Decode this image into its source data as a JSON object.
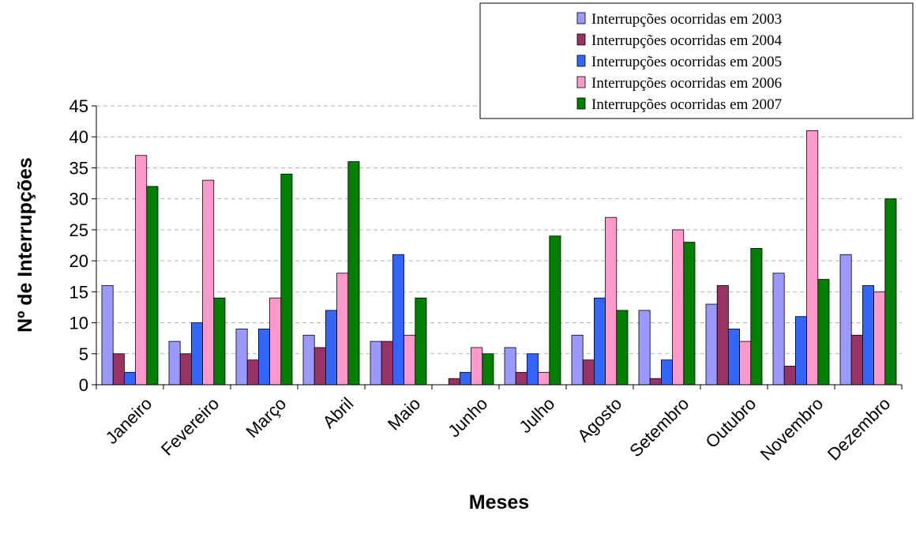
{
  "chart_data": {
    "type": "bar",
    "title": "",
    "xlabel": "Meses",
    "ylabel": "Nº de Interrupções",
    "ylim": [
      0,
      45
    ],
    "yticks": [
      0,
      5,
      10,
      15,
      20,
      25,
      30,
      35,
      40,
      45
    ],
    "grid": "horizontal dashed",
    "legend_position": "top-right",
    "categories": [
      "Janeiro",
      "Fevereiro",
      "Março",
      "Abril",
      "Maio",
      "Junho",
      "Julho",
      "Agosto",
      "Setembro",
      "Outubro",
      "Novembro",
      "Dezembro"
    ],
    "series": [
      {
        "name": "Interrupções ocorridas em 2003",
        "color": "#9999FF",
        "values": [
          16,
          7,
          9,
          8,
          7,
          0,
          6,
          8,
          12,
          13,
          18,
          21
        ]
      },
      {
        "name": "Interrupções ocorridas em 2004",
        "color": "#993366",
        "values": [
          5,
          5,
          4,
          6,
          7,
          1,
          2,
          4,
          1,
          16,
          3,
          8
        ]
      },
      {
        "name": "Interrupções ocorridas em 2005",
        "color": "#3366FF",
        "values": [
          2,
          10,
          9,
          12,
          21,
          2,
          5,
          14,
          4,
          9,
          11,
          16
        ]
      },
      {
        "name": "Interrupções ocorridas em 2006",
        "color": "#FF99CC",
        "values": [
          37,
          33,
          14,
          18,
          8,
          6,
          2,
          27,
          25,
          7,
          41,
          15
        ]
      },
      {
        "name": "Interrupções ocorridas em 2007",
        "color": "#008000",
        "values": [
          32,
          14,
          34,
          36,
          14,
          5,
          24,
          12,
          23,
          22,
          17,
          30
        ]
      }
    ]
  }
}
